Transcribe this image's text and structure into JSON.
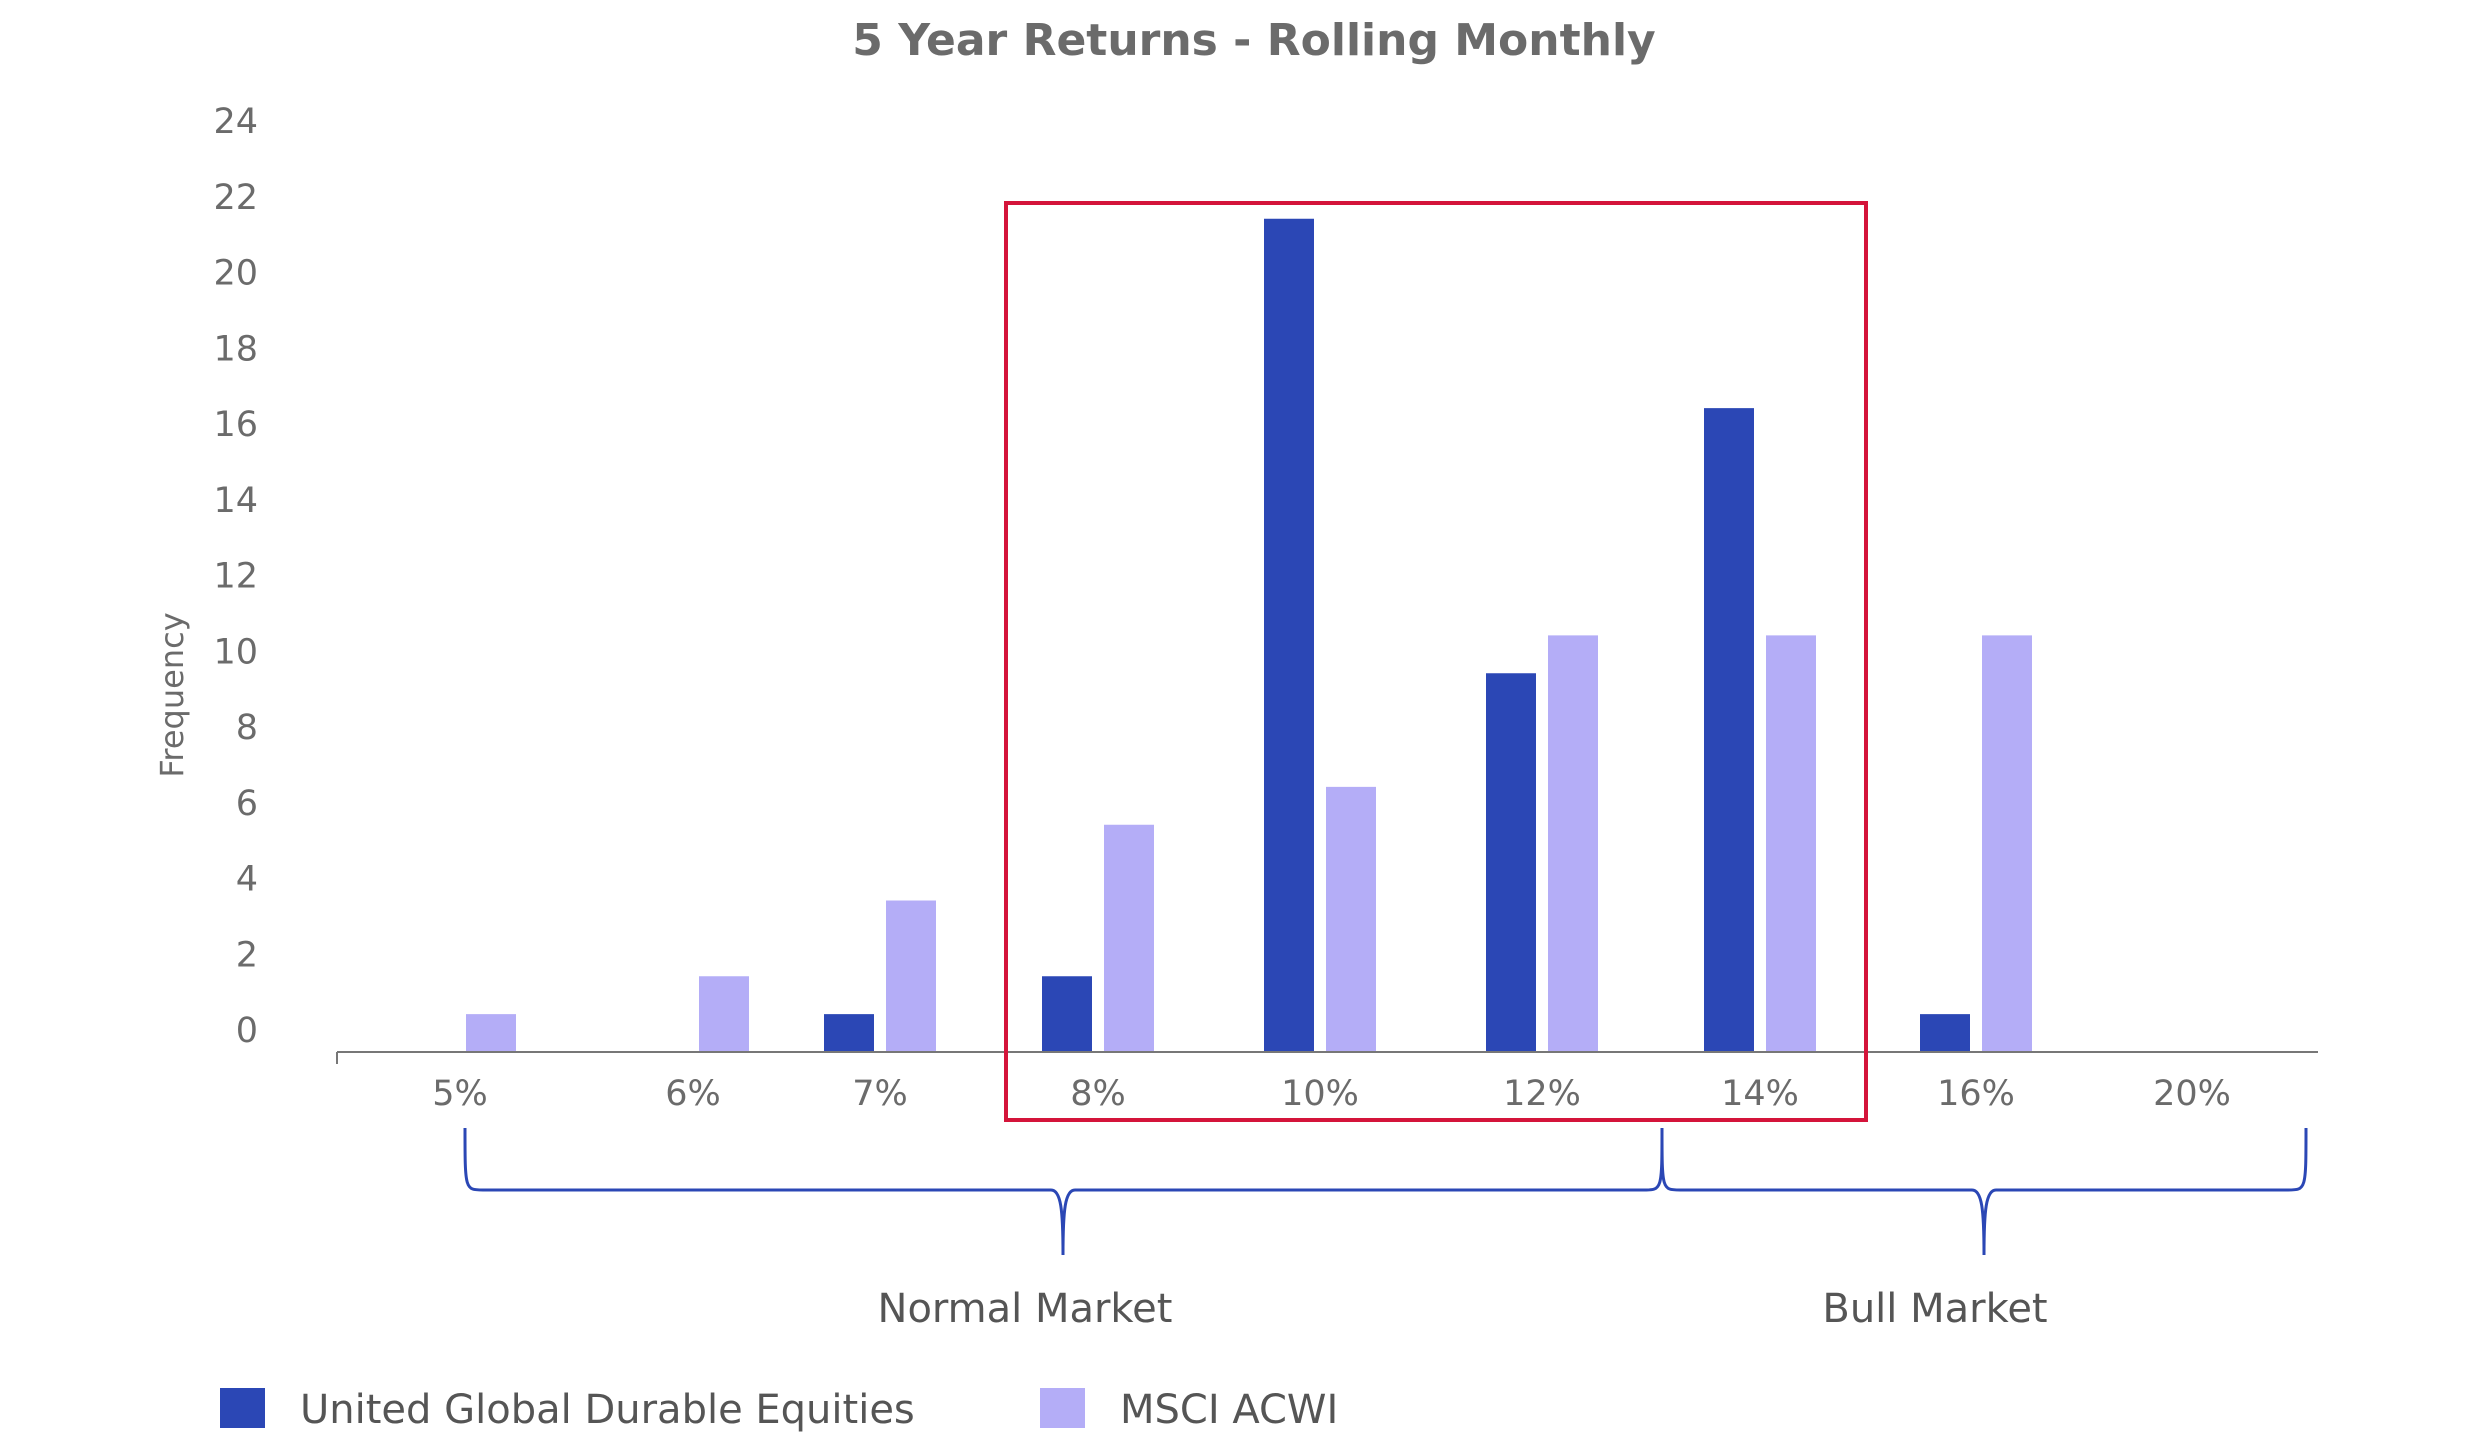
{
  "chart_data": {
    "type": "bar",
    "title": "5 Year Returns - Rolling Monthly",
    "xlabel": "",
    "ylabel": "Frequency",
    "ylim": [
      0,
      24
    ],
    "yticks": [
      0,
      2,
      4,
      6,
      8,
      10,
      12,
      14,
      16,
      18,
      20,
      22,
      24
    ],
    "categories": [
      "5%",
      "6%",
      "7%",
      "8%",
      "10%",
      "12%",
      "14%",
      "16%",
      "20%"
    ],
    "series": [
      {
        "name": "United Global Durable Equities",
        "color": "#2b47b5",
        "values": [
          0,
          0,
          1,
          2,
          22,
          10,
          17,
          1,
          0
        ]
      },
      {
        "name": "MSCI ACWI",
        "color": "#b4adf7",
        "values": [
          1,
          2,
          4,
          6,
          7,
          11,
          11,
          11,
          0
        ]
      }
    ],
    "grid": false,
    "legend_position": "bottom-left",
    "highlight_box": {
      "from_category": "8%",
      "to_category": "14%",
      "color": "#d4143a"
    },
    "regions": [
      {
        "label": "Normal Market",
        "from_category": "5%",
        "to_category": "14%"
      },
      {
        "label": "Bull Market",
        "from_category": "14%",
        "to_category": "20%"
      }
    ],
    "bracket_color": "#2b47b5"
  }
}
